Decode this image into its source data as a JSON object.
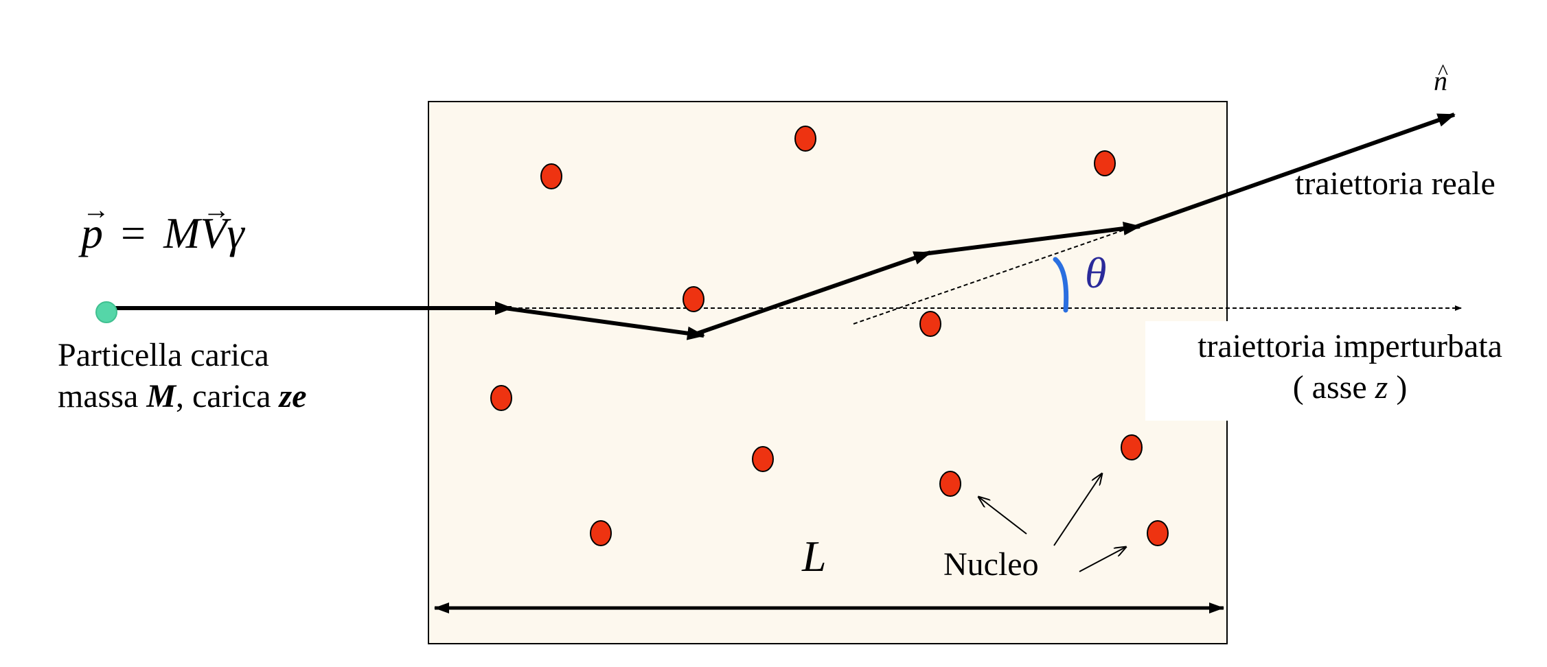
{
  "momentum_formula": {
    "p": "p",
    "equals": "=",
    "M": "M",
    "V": "V",
    "gamma": "γ",
    "arrow": "→"
  },
  "particle": {
    "line1": "Particella carica",
    "line2_a": "massa ",
    "line2_M": "M",
    "line2_b": ", carica ",
    "line2_ze": "ze"
  },
  "labels": {
    "n_hat": "n",
    "n_hat_mark": "^",
    "real_trajectory": "traiettoria reale",
    "unperturbed_line1": "traiettoria imperturbata",
    "unperturbed_line2_a": "( asse ",
    "unperturbed_line2_z": "z",
    "unperturbed_line2_b": " )",
    "theta": "θ",
    "length": "L",
    "nucleus": "Nucleo"
  },
  "colors": {
    "slab_fill": "#fdf8ee",
    "nucleus_fill": "#ee3311",
    "particle_fill": "#55d6a8",
    "theta_color": "#2a2a9a",
    "angle_arc": "#2a6fe0"
  }
}
